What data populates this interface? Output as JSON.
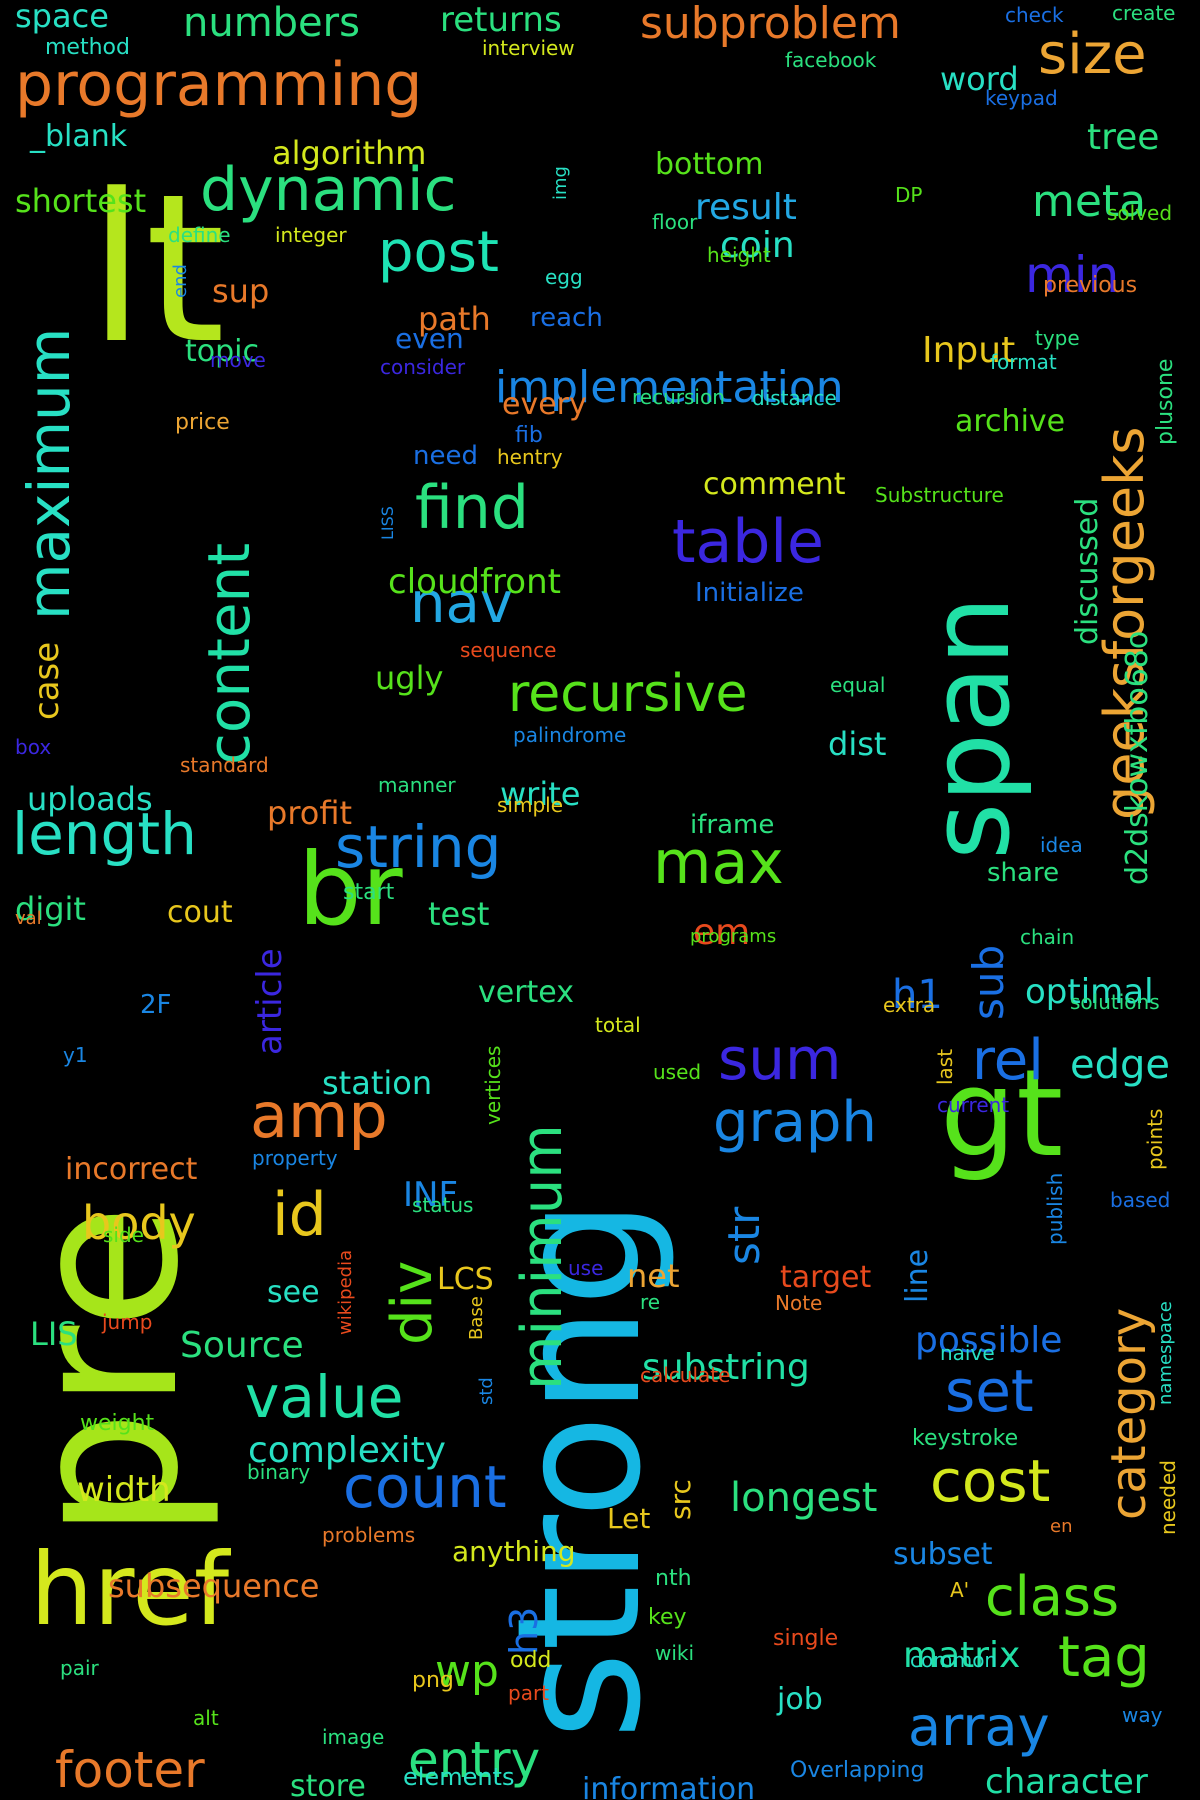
{
  "words": [
    {
      "text": "strong",
      "size": 170,
      "color": "#15b7e3",
      "rot": true
    },
    {
      "text": "lt",
      "size": 205,
      "color": "#b5e61d",
      "rot": false
    },
    {
      "text": "pre",
      "size": 205,
      "color": "#a6e51a",
      "rot": true
    },
    {
      "text": "span",
      "size": 110,
      "color": "#21e0a6",
      "rot": true
    },
    {
      "text": "gt",
      "size": 120,
      "color": "#56e21b",
      "rot": false
    },
    {
      "text": "br",
      "size": 100,
      "color": "#56e21b",
      "rot": false
    },
    {
      "text": "href",
      "size": 100,
      "color": "#d4e81d",
      "rot": false
    },
    {
      "text": "programming",
      "size": 60,
      "color": "#e8792a",
      "rot": false
    },
    {
      "text": "dynamic",
      "size": 60,
      "color": "#2be07f",
      "rot": false
    },
    {
      "text": "post",
      "size": 56,
      "color": "#1ee3b4",
      "rot": false
    },
    {
      "text": "size",
      "size": 56,
      "color": "#eca534",
      "rot": false
    },
    {
      "text": "numbers",
      "size": 40,
      "color": "#2be07f",
      "rot": false
    },
    {
      "text": "subproblem",
      "size": 44,
      "color": "#e8792a",
      "rot": false
    },
    {
      "text": "returns",
      "size": 34,
      "color": "#2be07f",
      "rot": false
    },
    {
      "text": "space",
      "size": 32,
      "color": "#28e0c4",
      "rot": false
    },
    {
      "text": "maximum",
      "size": 58,
      "color": "#28e0c4",
      "rot": true
    },
    {
      "text": "content",
      "size": 58,
      "color": "#21e0a6",
      "rot": true
    },
    {
      "text": "find",
      "size": 60,
      "color": "#2be07f",
      "rot": false
    },
    {
      "text": "table",
      "size": 60,
      "color": "#3b27e0",
      "rot": false
    },
    {
      "text": "nav",
      "size": 56,
      "color": "#23a8e3",
      "rot": false
    },
    {
      "text": "recursive",
      "size": 52,
      "color": "#56e21b",
      "rot": false
    },
    {
      "text": "geeksforgeeks",
      "size": 54,
      "color": "#eca534",
      "rot": true
    },
    {
      "text": "length",
      "size": 58,
      "color": "#28e0c4",
      "rot": false
    },
    {
      "text": "string",
      "size": 58,
      "color": "#1a86e3",
      "rot": false
    },
    {
      "text": "max",
      "size": 60,
      "color": "#56e21b",
      "rot": false
    },
    {
      "text": "amp",
      "size": 62,
      "color": "#e8792a",
      "rot": false
    },
    {
      "text": "id",
      "size": 60,
      "color": "#e8c71d",
      "rot": false
    },
    {
      "text": "sum",
      "size": 58,
      "color": "#3b27e0",
      "rot": false
    },
    {
      "text": "graph",
      "size": 56,
      "color": "#1a86e3",
      "rot": false
    },
    {
      "text": "rel",
      "size": 56,
      "color": "#1a6fe3",
      "rot": false
    },
    {
      "text": "minimum",
      "size": 56,
      "color": "#2be07f",
      "rot": true
    },
    {
      "text": "div",
      "size": 56,
      "color": "#56e21b",
      "rot": true
    },
    {
      "text": "value",
      "size": 58,
      "color": "#21e0a6",
      "rot": false
    },
    {
      "text": "count",
      "size": 58,
      "color": "#1a6fe3",
      "rot": false
    },
    {
      "text": "set",
      "size": 58,
      "color": "#1a6fe3",
      "rot": false
    },
    {
      "text": "cost",
      "size": 58,
      "color": "#d4e81d",
      "rot": false
    },
    {
      "text": "category",
      "size": 48,
      "color": "#eca534",
      "rot": true
    },
    {
      "text": "class",
      "size": 54,
      "color": "#56e21b",
      "rot": false
    },
    {
      "text": "tag",
      "size": 56,
      "color": "#56e21b",
      "rot": false
    },
    {
      "text": "array",
      "size": 54,
      "color": "#1a86e3",
      "rot": false
    },
    {
      "text": "entry",
      "size": 50,
      "color": "#2be07f",
      "rot": false
    },
    {
      "text": "footer",
      "size": 50,
      "color": "#e8792a",
      "rot": false
    },
    {
      "text": "body",
      "size": 46,
      "color": "#e8c71d",
      "rot": false
    },
    {
      "text": "wp",
      "size": 44,
      "color": "#56e21b",
      "rot": false
    },
    {
      "text": "min",
      "size": 50,
      "color": "#3b27e0",
      "rot": false
    },
    {
      "text": "meta",
      "size": 44,
      "color": "#2be07f",
      "rot": false
    },
    {
      "text": "implementation",
      "size": 44,
      "color": "#1a86e3",
      "rot": false
    },
    {
      "text": "str",
      "size": 44,
      "color": "#1a86e3",
      "rot": true
    },
    {
      "text": "sub",
      "size": 42,
      "color": "#1a6fe3",
      "rot": true
    },
    {
      "text": "cloudfront",
      "size": 34,
      "color": "#56e21b",
      "rot": false
    },
    {
      "text": "complexity",
      "size": 36,
      "color": "#28e0c4",
      "rot": false
    },
    {
      "text": "longest",
      "size": 40,
      "color": "#2be07f",
      "rot": false
    },
    {
      "text": "subsequence",
      "size": 32,
      "color": "#e8792a",
      "rot": false
    },
    {
      "text": "substring",
      "size": 36,
      "color": "#21e0a6",
      "rot": false
    },
    {
      "text": "possible",
      "size": 36,
      "color": "#1a6fe3",
      "rot": false
    },
    {
      "text": "matrix",
      "size": 36,
      "color": "#21e0a6",
      "rot": false
    },
    {
      "text": "character",
      "size": 34,
      "color": "#21e0a6",
      "rot": false
    },
    {
      "text": "information",
      "size": 30,
      "color": "#1a86e3",
      "rot": false
    },
    {
      "text": "width",
      "size": 34,
      "color": "#d4e81d",
      "rot": false
    },
    {
      "text": "Source",
      "size": 36,
      "color": "#2be07f",
      "rot": false
    },
    {
      "text": "optimal",
      "size": 34,
      "color": "#28e0c4",
      "rot": false
    },
    {
      "text": "edge",
      "size": 40,
      "color": "#28e0c4",
      "rot": false
    },
    {
      "text": "Input",
      "size": 36,
      "color": "#e8c71d",
      "rot": false
    },
    {
      "text": "result",
      "size": 36,
      "color": "#23a8e3",
      "rot": false
    },
    {
      "text": "coin",
      "size": 36,
      "color": "#28e0c4",
      "rot": false
    },
    {
      "text": "algorithm",
      "size": 32,
      "color": "#d4e81d",
      "rot": false
    },
    {
      "text": "shortest",
      "size": 32,
      "color": "#56e21b",
      "rot": false
    },
    {
      "text": "tree",
      "size": 36,
      "color": "#2be07f",
      "rot": false
    },
    {
      "text": "word",
      "size": 32,
      "color": "#28e0c4",
      "rot": false
    },
    {
      "text": "bottom",
      "size": 30,
      "color": "#56e21b",
      "rot": false
    },
    {
      "text": "path",
      "size": 32,
      "color": "#e8792a",
      "rot": false
    },
    {
      "text": "sup",
      "size": 32,
      "color": "#e8792a",
      "rot": false
    },
    {
      "text": "topic",
      "size": 30,
      "color": "#2be07f",
      "rot": false
    },
    {
      "text": "uploads",
      "size": 32,
      "color": "#28e0c4",
      "rot": false
    },
    {
      "text": "profit",
      "size": 32,
      "color": "#e8792a",
      "rot": false
    },
    {
      "text": "write",
      "size": 32,
      "color": "#28e0c4",
      "rot": false
    },
    {
      "text": "dist",
      "size": 32,
      "color": "#28e0c4",
      "rot": false
    },
    {
      "text": "ugly",
      "size": 32,
      "color": "#56e21b",
      "rot": false
    },
    {
      "text": "digit",
      "size": 32,
      "color": "#2be07f",
      "rot": false
    },
    {
      "text": "cout",
      "size": 30,
      "color": "#e8c71d",
      "rot": false
    },
    {
      "text": "test",
      "size": 32,
      "color": "#2be07f",
      "rot": false
    },
    {
      "text": "h1",
      "size": 40,
      "color": "#1a6fe3",
      "rot": false
    },
    {
      "text": "em",
      "size": 36,
      "color": "#e84a1d",
      "rot": false
    },
    {
      "text": "station",
      "size": 32,
      "color": "#28e0c4",
      "rot": false
    },
    {
      "text": "vertex",
      "size": 30,
      "color": "#2be07f",
      "rot": false
    },
    {
      "text": "incorrect",
      "size": 30,
      "color": "#e8792a",
      "rot": false
    },
    {
      "text": "LIS",
      "size": 32,
      "color": "#2be07f",
      "rot": false
    },
    {
      "text": "see",
      "size": 30,
      "color": "#28e0c4",
      "rot": false
    },
    {
      "text": "LCS",
      "size": 30,
      "color": "#e8c71d",
      "rot": false
    },
    {
      "text": "INF",
      "size": 34,
      "color": "#1a86e3",
      "rot": false
    },
    {
      "text": "net",
      "size": 32,
      "color": "#eca534",
      "rot": false
    },
    {
      "text": "target",
      "size": 30,
      "color": "#e84a1d",
      "rot": false
    },
    {
      "text": "subset",
      "size": 30,
      "color": "#1a86e3",
      "rot": false
    },
    {
      "text": "h3",
      "size": 38,
      "color": "#1a6fe3",
      "rot": true
    },
    {
      "text": "job",
      "size": 30,
      "color": "#28e0c4",
      "rot": false
    },
    {
      "text": "store",
      "size": 30,
      "color": "#2be07f",
      "rot": false
    },
    {
      "text": "anything",
      "size": 28,
      "color": "#d4e81d",
      "rot": false
    },
    {
      "text": "Let",
      "size": 28,
      "color": "#e8c71d",
      "rot": false
    },
    {
      "text": "src",
      "size": 28,
      "color": "#e8c71d",
      "rot": true
    },
    {
      "text": "article",
      "size": 34,
      "color": "#3b27e0",
      "rot": true
    },
    {
      "text": "discussed",
      "size": 30,
      "color": "#2be07f",
      "rot": true
    },
    {
      "text": "d2dskowxfbo68o",
      "size": 30,
      "color": "#2be07f",
      "rot": true
    },
    {
      "text": "case",
      "size": 34,
      "color": "#e8c71d",
      "rot": true
    },
    {
      "text": "plusone",
      "size": 22,
      "color": "#2be07f",
      "rot": true
    },
    {
      "text": "line",
      "size": 30,
      "color": "#1a86e3",
      "rot": true
    },
    {
      "text": "comment",
      "size": 30,
      "color": "#d4e81d",
      "rot": false
    },
    {
      "text": "archive",
      "size": 30,
      "color": "#56e21b",
      "rot": false
    },
    {
      "text": "every",
      "size": 30,
      "color": "#e8792a",
      "rot": false
    },
    {
      "text": "even",
      "size": 28,
      "color": "#1a6fe3",
      "rot": false
    },
    {
      "text": "need",
      "size": 26,
      "color": "#1a6fe3",
      "rot": false
    },
    {
      "text": "reach",
      "size": 26,
      "color": "#1a6fe3",
      "rot": false
    },
    {
      "text": "iframe",
      "size": 26,
      "color": "#2be07f",
      "rot": false
    },
    {
      "text": "share",
      "size": 26,
      "color": "#2be07f",
      "rot": false
    },
    {
      "text": "Initialize",
      "size": 26,
      "color": "#1a6fe3",
      "rot": false
    },
    {
      "text": "method",
      "size": 22,
      "color": "#28e0c4",
      "rot": false
    },
    {
      "text": "_blank",
      "size": 30,
      "color": "#28e0c4",
      "rot": false
    },
    {
      "text": "interview",
      "size": 20,
      "color": "#d4e81d",
      "rot": false
    },
    {
      "text": "facebook",
      "size": 20,
      "color": "#2be07f",
      "rot": false
    },
    {
      "text": "check",
      "size": 20,
      "color": "#1a6fe3",
      "rot": false
    },
    {
      "text": "create",
      "size": 20,
      "color": "#2be07f",
      "rot": false
    },
    {
      "text": "keypad",
      "size": 20,
      "color": "#1a6fe3",
      "rot": false
    },
    {
      "text": "DP",
      "size": 20,
      "color": "#56e21b",
      "rot": false
    },
    {
      "text": "solved",
      "size": 20,
      "color": "#56e21b",
      "rot": false
    },
    {
      "text": "floor",
      "size": 20,
      "color": "#2be07f",
      "rot": false
    },
    {
      "text": "height",
      "size": 20,
      "color": "#56e21b",
      "rot": false
    },
    {
      "text": "previous",
      "size": 22,
      "color": "#e8792a",
      "rot": false
    },
    {
      "text": "define",
      "size": 20,
      "color": "#2be07f",
      "rot": false
    },
    {
      "text": "integer",
      "size": 20,
      "color": "#d4e81d",
      "rot": false
    },
    {
      "text": "egg",
      "size": 20,
      "color": "#28e0c4",
      "rot": false
    },
    {
      "text": "end",
      "size": 18,
      "color": "#1a86e3",
      "rot": true
    },
    {
      "text": "img",
      "size": 18,
      "color": "#28e0c4",
      "rot": true
    },
    {
      "text": "move",
      "size": 20,
      "color": "#3b27e0",
      "rot": false
    },
    {
      "text": "consider",
      "size": 20,
      "color": "#3b27e0",
      "rot": false
    },
    {
      "text": "type",
      "size": 20,
      "color": "#2be07f",
      "rot": false
    },
    {
      "text": "format",
      "size": 20,
      "color": "#28e0c4",
      "rot": false
    },
    {
      "text": "recursion",
      "size": 20,
      "color": "#2be07f",
      "rot": false
    },
    {
      "text": "distance",
      "size": 20,
      "color": "#28e0c4",
      "rot": false
    },
    {
      "text": "price",
      "size": 22,
      "color": "#eca534",
      "rot": false
    },
    {
      "text": "fib",
      "size": 22,
      "color": "#1a6fe3",
      "rot": false
    },
    {
      "text": "hentry",
      "size": 20,
      "color": "#e8c71d",
      "rot": false
    },
    {
      "text": "Substructure",
      "size": 20,
      "color": "#56e21b",
      "rot": false
    },
    {
      "text": "LISS",
      "size": 16,
      "color": "#1a86e3",
      "rot": true
    },
    {
      "text": "sequence",
      "size": 20,
      "color": "#e84a1d",
      "rot": false
    },
    {
      "text": "equal",
      "size": 20,
      "color": "#2be07f",
      "rot": false
    },
    {
      "text": "palindrome",
      "size": 20,
      "color": "#1a86e3",
      "rot": false
    },
    {
      "text": "box",
      "size": 20,
      "color": "#3b27e0",
      "rot": false
    },
    {
      "text": "standard",
      "size": 20,
      "color": "#e8792a",
      "rot": false
    },
    {
      "text": "manner",
      "size": 20,
      "color": "#2be07f",
      "rot": false
    },
    {
      "text": "simple",
      "size": 20,
      "color": "#e8c71d",
      "rot": false
    },
    {
      "text": "idea",
      "size": 20,
      "color": "#1a86e3",
      "rot": false
    },
    {
      "text": "val",
      "size": 18,
      "color": "#e8792a",
      "rot": false
    },
    {
      "text": "start",
      "size": 22,
      "color": "#2be07f",
      "rot": false
    },
    {
      "text": "chain",
      "size": 20,
      "color": "#2be07f",
      "rot": false
    },
    {
      "text": "programs",
      "size": 18,
      "color": "#56e21b",
      "rot": false
    },
    {
      "text": "2F",
      "size": 26,
      "color": "#1a86e3",
      "rot": false
    },
    {
      "text": "solutions",
      "size": 20,
      "color": "#2be07f",
      "rot": false
    },
    {
      "text": "extra",
      "size": 20,
      "color": "#e8c71d",
      "rot": false
    },
    {
      "text": "total",
      "size": 20,
      "color": "#d4e81d",
      "rot": false
    },
    {
      "text": "y1",
      "size": 20,
      "color": "#1a86e3",
      "rot": false
    },
    {
      "text": "used",
      "size": 20,
      "color": "#56e21b",
      "rot": false
    },
    {
      "text": "last",
      "size": 20,
      "color": "#e8c71d",
      "rot": true
    },
    {
      "text": "vertices",
      "size": 20,
      "color": "#56e21b",
      "rot": true
    },
    {
      "text": "current",
      "size": 20,
      "color": "#3b27e0",
      "rot": false
    },
    {
      "text": "points",
      "size": 20,
      "color": "#e8c71d",
      "rot": true
    },
    {
      "text": "property",
      "size": 20,
      "color": "#1a86e3",
      "rot": false
    },
    {
      "text": "publish",
      "size": 20,
      "color": "#1a86e3",
      "rot": true
    },
    {
      "text": "status",
      "size": 20,
      "color": "#2be07f",
      "rot": false
    },
    {
      "text": "based",
      "size": 20,
      "color": "#1a6fe3",
      "rot": false
    },
    {
      "text": "side",
      "size": 20,
      "color": "#56e21b",
      "rot": false
    },
    {
      "text": "wikipedia",
      "size": 18,
      "color": "#e84a1d",
      "rot": true
    },
    {
      "text": "use",
      "size": 20,
      "color": "#3b27e0",
      "rot": false
    },
    {
      "text": "Base",
      "size": 18,
      "color": "#e8c71d",
      "rot": true
    },
    {
      "text": "re",
      "size": 20,
      "color": "#2be07f",
      "rot": false
    },
    {
      "text": "Note",
      "size": 20,
      "color": "#e8792a",
      "rot": false
    },
    {
      "text": "jump",
      "size": 20,
      "color": "#e84a1d",
      "rot": false
    },
    {
      "text": "naive",
      "size": 20,
      "color": "#28e0c4",
      "rot": false
    },
    {
      "text": "namespace",
      "size": 18,
      "color": "#28e0c4",
      "rot": true
    },
    {
      "text": "calculate",
      "size": 20,
      "color": "#e84a1d",
      "rot": false
    },
    {
      "text": "std",
      "size": 18,
      "color": "#1a86e3",
      "rot": true
    },
    {
      "text": "weight",
      "size": 22,
      "color": "#56e21b",
      "rot": false
    },
    {
      "text": "keystroke",
      "size": 22,
      "color": "#2be07f",
      "rot": false
    },
    {
      "text": "binary",
      "size": 20,
      "color": "#2be07f",
      "rot": false
    },
    {
      "text": "needed",
      "size": 20,
      "color": "#e8c71d",
      "rot": true
    },
    {
      "text": "problems",
      "size": 20,
      "color": "#e8792a",
      "rot": false
    },
    {
      "text": "en",
      "size": 18,
      "color": "#e8792a",
      "rot": false
    },
    {
      "text": "nth",
      "size": 22,
      "color": "#2be07f",
      "rot": false
    },
    {
      "text": "A'",
      "size": 20,
      "color": "#e8c71d",
      "rot": false
    },
    {
      "text": "key",
      "size": 22,
      "color": "#56e21b",
      "rot": false
    },
    {
      "text": "single",
      "size": 22,
      "color": "#e84a1d",
      "rot": false
    },
    {
      "text": "pair",
      "size": 20,
      "color": "#2be07f",
      "rot": false
    },
    {
      "text": "odd",
      "size": 22,
      "color": "#d4e81d",
      "rot": false
    },
    {
      "text": "wiki",
      "size": 20,
      "color": "#2be07f",
      "rot": false
    },
    {
      "text": "common",
      "size": 20,
      "color": "#28e0c4",
      "rot": false
    },
    {
      "text": "png",
      "size": 22,
      "color": "#e8c71d",
      "rot": false
    },
    {
      "text": "part",
      "size": 20,
      "color": "#e84a1d",
      "rot": false
    },
    {
      "text": "alt",
      "size": 20,
      "color": "#56e21b",
      "rot": false
    },
    {
      "text": "image",
      "size": 20,
      "color": "#2be07f",
      "rot": false
    },
    {
      "text": "way",
      "size": 20,
      "color": "#1a86e3",
      "rot": false
    },
    {
      "text": "elements",
      "size": 24,
      "color": "#28e0c4",
      "rot": false
    },
    {
      "text": "Overlapping",
      "size": 22,
      "color": "#1a86e3",
      "rot": false
    }
  ]
}
